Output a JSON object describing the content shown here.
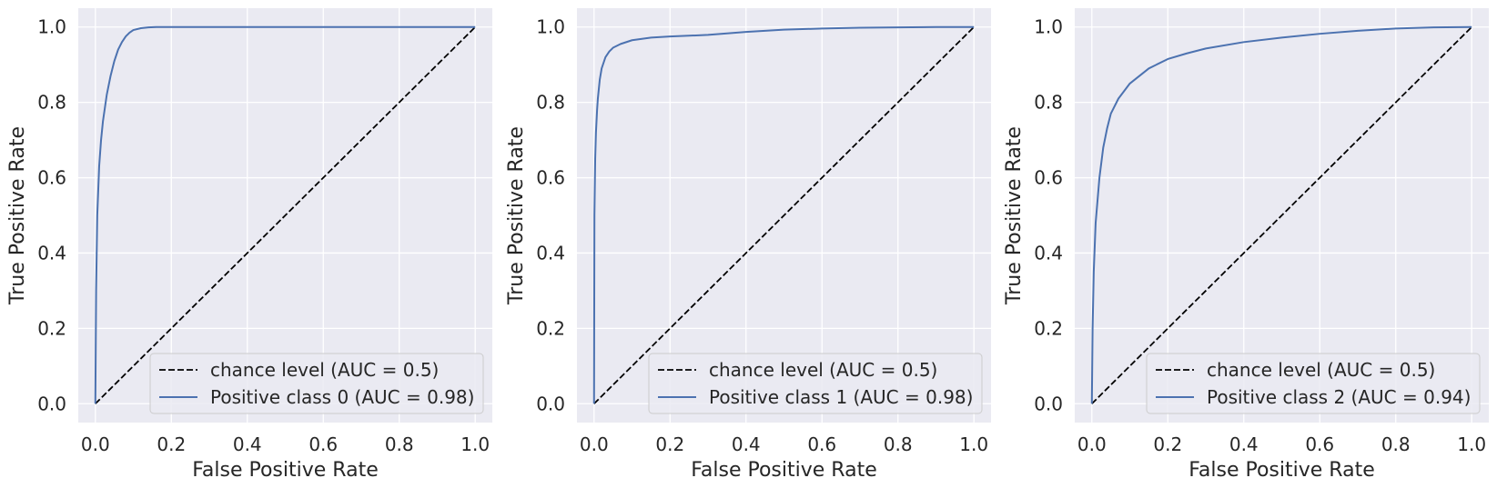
{
  "chart_data": [
    {
      "type": "line",
      "xlabel": "False Positive Rate",
      "ylabel": "True Positive Rate",
      "xlim": [
        -0.045,
        1.045
      ],
      "ylim": [
        -0.05,
        1.05
      ],
      "xticks": [
        0.0,
        0.2,
        0.4,
        0.6,
        0.8,
        1.0
      ],
      "yticks": [
        0.0,
        0.2,
        0.4,
        0.6,
        0.8,
        1.0
      ],
      "tick_labels": [
        "0.0",
        "0.2",
        "0.4",
        "0.6",
        "0.8",
        "1.0"
      ],
      "grid": true,
      "legend_position": "lower-right",
      "series": [
        {
          "name": "chance level (AUC = 0.5)",
          "style": "dashed",
          "color": "#000000",
          "x": [
            0,
            1
          ],
          "y": [
            0,
            1
          ]
        },
        {
          "name": "Positive class 0 (AUC = 0.98)",
          "style": "solid",
          "color": "#4c72b0",
          "x": [
            0,
            0.002,
            0.005,
            0.01,
            0.015,
            0.02,
            0.03,
            0.04,
            0.05,
            0.06,
            0.07,
            0.08,
            0.09,
            0.1,
            0.12,
            0.14,
            0.16,
            0.2,
            0.3,
            0.5,
            0.7,
            1.0
          ],
          "y": [
            0,
            0.3,
            0.5,
            0.63,
            0.7,
            0.75,
            0.82,
            0.87,
            0.91,
            0.94,
            0.96,
            0.975,
            0.985,
            0.992,
            0.997,
            0.999,
            1.0,
            1.0,
            1.0,
            1.0,
            1.0,
            1.0
          ]
        }
      ]
    },
    {
      "type": "line",
      "xlabel": "False Positive Rate",
      "ylabel": "True Positive Rate",
      "xlim": [
        -0.045,
        1.045
      ],
      "ylim": [
        -0.05,
        1.05
      ],
      "xticks": [
        0.0,
        0.2,
        0.4,
        0.6,
        0.8,
        1.0
      ],
      "yticks": [
        0.0,
        0.2,
        0.4,
        0.6,
        0.8,
        1.0
      ],
      "tick_labels": [
        "0.0",
        "0.2",
        "0.4",
        "0.6",
        "0.8",
        "1.0"
      ],
      "grid": true,
      "legend_position": "lower-right",
      "series": [
        {
          "name": "chance level (AUC = 0.5)",
          "style": "dashed",
          "color": "#000000",
          "x": [
            0,
            1
          ],
          "y": [
            0,
            1
          ]
        },
        {
          "name": "Positive class 1 (AUC = 0.98)",
          "style": "solid",
          "color": "#4c72b0",
          "x": [
            0,
            0.001,
            0.003,
            0.005,
            0.008,
            0.01,
            0.015,
            0.02,
            0.03,
            0.04,
            0.05,
            0.07,
            0.1,
            0.15,
            0.2,
            0.3,
            0.4,
            0.5,
            0.6,
            0.7,
            0.8,
            0.9,
            1.0
          ],
          "y": [
            0,
            0.5,
            0.65,
            0.72,
            0.78,
            0.81,
            0.86,
            0.89,
            0.92,
            0.935,
            0.945,
            0.955,
            0.965,
            0.972,
            0.975,
            0.979,
            0.987,
            0.993,
            0.996,
            0.998,
            0.999,
            1.0,
            1.0
          ]
        }
      ]
    },
    {
      "type": "line",
      "xlabel": "False Positive Rate",
      "ylabel": "True Positive Rate",
      "xlim": [
        -0.045,
        1.045
      ],
      "ylim": [
        -0.05,
        1.05
      ],
      "xticks": [
        0.0,
        0.2,
        0.4,
        0.6,
        0.8,
        1.0
      ],
      "yticks": [
        0.0,
        0.2,
        0.4,
        0.6,
        0.8,
        1.0
      ],
      "tick_labels": [
        "0.0",
        "0.2",
        "0.4",
        "0.6",
        "0.8",
        "1.0"
      ],
      "grid": true,
      "legend_position": "lower-right",
      "series": [
        {
          "name": "chance level (AUC = 0.5)",
          "style": "dashed",
          "color": "#000000",
          "x": [
            0,
            1
          ],
          "y": [
            0,
            1
          ]
        },
        {
          "name": "Positive class 2 (AUC = 0.94)",
          "style": "solid",
          "color": "#4c72b0",
          "x": [
            0,
            0.002,
            0.005,
            0.01,
            0.02,
            0.03,
            0.04,
            0.05,
            0.07,
            0.1,
            0.15,
            0.2,
            0.25,
            0.3,
            0.4,
            0.5,
            0.6,
            0.7,
            0.8,
            0.9,
            1.0
          ],
          "y": [
            0,
            0.2,
            0.35,
            0.48,
            0.6,
            0.68,
            0.73,
            0.77,
            0.81,
            0.85,
            0.89,
            0.915,
            0.93,
            0.943,
            0.96,
            0.972,
            0.982,
            0.99,
            0.996,
            0.999,
            1.0
          ]
        }
      ]
    }
  ]
}
